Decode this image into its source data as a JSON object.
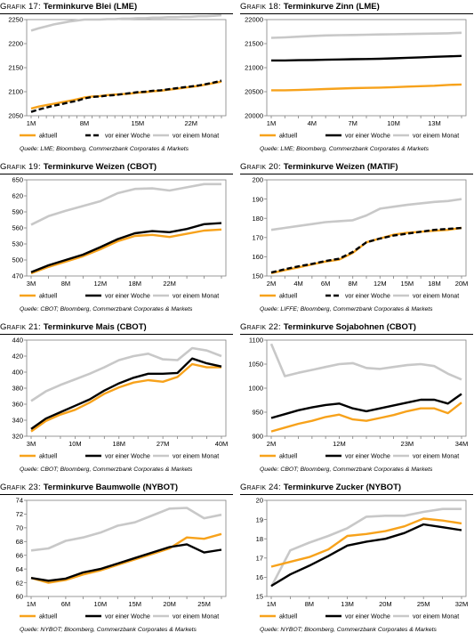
{
  "charts": [
    {
      "prefix": "Grafik 17:",
      "name": "Terminkurve Blei (LME)",
      "source": "Quelle: LME; Bloomberg, Commerzbank Corporates & Markets",
      "chart_data": {
        "type": "line",
        "x": [
          "1M",
          "",
          "",
          "",
          "",
          "",
          "",
          "8M",
          "",
          "",
          "",
          "",
          "",
          "",
          "15M",
          "",
          "",
          "",
          "",
          "",
          "",
          "22M",
          "",
          "",
          "",
          ""
        ],
        "y_ticks": [
          2050,
          2100,
          2150,
          2200,
          2250
        ],
        "ylim": [
          2050,
          2250
        ],
        "legend": [
          "aktuell",
          "vor einer Woche",
          "vor einem Monat"
        ],
        "series": [
          {
            "name": "aktuell",
            "color": "#f7a21b",
            "dash": "",
            "values": [
              2065,
              2069,
              2072,
              2075,
              2078,
              2081,
              2084,
              2088,
              2090,
              2091,
              2093,
              2094,
              2095,
              2096,
              2098,
              2099,
              2101,
              2102,
              2104,
              2106,
              2108,
              2110,
              2112,
              2115,
              2118,
              2121
            ]
          },
          {
            "name": "vor einer Woche",
            "color": "#000000",
            "dash": "6,3",
            "values": [
              2058,
              2063,
              2067,
              2071,
              2074,
              2078,
              2081,
              2086,
              2089,
              2090,
              2092,
              2093,
              2095,
              2097,
              2099,
              2100,
              2102,
              2103,
              2105,
              2107,
              2109,
              2111,
              2113,
              2116,
              2119,
              2123
            ]
          },
          {
            "name": "vor einem Monat",
            "color": "#c8c8c8",
            "dash": "",
            "values": [
              2227,
              2232,
              2236,
              2240,
              2243,
              2246,
              2248,
              2250,
              2250,
              2250,
              2251,
              2251,
              2252,
              2252,
              2253,
              2253,
              2254,
              2254,
              2255,
              2255,
              2256,
              2256,
              2257,
              2257,
              2258,
              2259
            ]
          }
        ]
      }
    },
    {
      "prefix": "Grafik 18:",
      "name": "Terminkurve Zinn (LME)",
      "source": "Quelle: LME; Bloomberg, Commerzbank Corporates & Markets",
      "chart_data": {
        "type": "line",
        "x": [
          "1M",
          "",
          "",
          "4M",
          "",
          "",
          "7M",
          "",
          "",
          "10M",
          "",
          "",
          "13M",
          "",
          ""
        ],
        "y_ticks": [
          20000,
          20500,
          21000,
          21500,
          22000
        ],
        "ylim": [
          20000,
          22000
        ],
        "legend": [
          "aktuell",
          "vor einer Woche",
          "vor einem Monat"
        ],
        "series": [
          {
            "name": "aktuell",
            "color": "#f7a21b",
            "dash": "",
            "values": [
              20530,
              20530,
              20535,
              20545,
              20555,
              20565,
              20575,
              20580,
              20585,
              20595,
              20605,
              20615,
              20625,
              20640,
              20650
            ]
          },
          {
            "name": "vor einer Woche",
            "color": "#000000",
            "dash": "",
            "values": [
              21150,
              21150,
              21155,
              21160,
              21165,
              21170,
              21175,
              21180,
              21185,
              21195,
              21205,
              21215,
              21225,
              21235,
              21245
            ]
          },
          {
            "name": "vor einem Monat",
            "color": "#c8c8c8",
            "dash": "",
            "values": [
              21620,
              21630,
              21645,
              21660,
              21670,
              21675,
              21680,
              21685,
              21690,
              21695,
              21700,
              21705,
              21710,
              21715,
              21725
            ]
          }
        ]
      }
    },
    {
      "prefix": "Grafik 19:",
      "name": "Terminkurve Weizen (CBOT)",
      "source": "Quelle: CBOT; Bloomberg, Commerzbank Corporates & Markets",
      "chart_data": {
        "type": "line",
        "x": [
          "3M",
          "",
          "8M",
          "",
          "12M",
          "",
          "18M",
          "",
          "22M",
          "",
          "",
          ""
        ],
        "y_ticks": [
          470,
          500,
          530,
          560,
          590,
          620,
          650
        ],
        "ylim": [
          470,
          650
        ],
        "legend": [
          "aktuell",
          "vor einer Woche",
          "vor einem Monat"
        ],
        "series": [
          {
            "name": "aktuell",
            "color": "#f7a21b",
            "dash": "",
            "values": [
              475,
              487,
              497,
              507,
              520,
              535,
              545,
              547,
              543,
              549,
              555,
              557
            ]
          },
          {
            "name": "vor einer Woche",
            "color": "#000000",
            "dash": "",
            "values": [
              477,
              490,
              500,
              510,
              524,
              539,
              550,
              554,
              552,
              558,
              567,
              569
            ]
          },
          {
            "name": "vor einem Monat",
            "color": "#c8c8c8",
            "dash": "",
            "values": [
              566,
              582,
              592,
              601,
              610,
              625,
              633,
              634,
              630,
              636,
              642,
              642
            ]
          }
        ]
      }
    },
    {
      "prefix": "Grafik 20:",
      "name": "Terminkurve Weizen (MATIF)",
      "source": "Quelle: LIFFE; Bloomberg, Commerzbank Corporates & Markets",
      "chart_data": {
        "type": "line",
        "x": [
          "2M",
          "",
          "4M",
          "",
          "6M",
          "",
          "8M",
          "",
          "12M",
          "",
          "15M",
          "",
          "18M",
          "",
          "20M"
        ],
        "y_ticks": [
          150,
          160,
          170,
          180,
          190,
          200
        ],
        "ylim": [
          150,
          200
        ],
        "legend": [
          "aktuell",
          "vor einer Woche",
          "vor einem Monat"
        ],
        "series": [
          {
            "name": "aktuell",
            "color": "#f7a21b",
            "dash": "",
            "values": [
              151.5,
              153,
              154.5,
              156,
              157.5,
              158.5,
              162,
              167.5,
              169.5,
              171.5,
              172.5,
              173,
              173.5,
              174,
              175
            ]
          },
          {
            "name": "vor einer Woche",
            "color": "#000000",
            "dash": "6,3",
            "values": [
              151.8,
              153.5,
              155,
              156.3,
              157.8,
              159,
              162.5,
              167.5,
              169.5,
              171,
              172,
              173,
              174,
              174.5,
              175
            ]
          },
          {
            "name": "vor einem Monat",
            "color": "#c8c8c8",
            "dash": "",
            "values": [
              174,
              175,
              176,
              177,
              178,
              178.5,
              179,
              181.5,
              185,
              186,
              187,
              187.8,
              188.5,
              189,
              190
            ]
          }
        ]
      }
    },
    {
      "prefix": "Grafik 21:",
      "name": "Terminkurve Mais (CBOT)",
      "source": "Quelle: CBOT; Bloomberg, Commerzbank Corporates & Markets",
      "chart_data": {
        "type": "line",
        "x": [
          "3M",
          "",
          "",
          "10M",
          "",
          "",
          "18M",
          "",
          "",
          "27M",
          "",
          "",
          "",
          "40M"
        ],
        "y_ticks": [
          320,
          340,
          360,
          380,
          400,
          420,
          440
        ],
        "ylim": [
          320,
          440
        ],
        "legend": [
          "aktuell",
          "vor einer Woche",
          "vor einem Monat"
        ],
        "series": [
          {
            "name": "aktuell",
            "color": "#f7a21b",
            "dash": "",
            "values": [
              326,
              339,
              347,
              353,
              362,
              373,
              381,
              387,
              390,
              388,
              394,
              410,
              406,
              406
            ]
          },
          {
            "name": "vor einer Woche",
            "color": "#000000",
            "dash": "",
            "values": [
              329,
              342,
              350,
              358,
              366,
              377,
              386,
              393,
              398,
              398,
              399,
              417,
              411,
              407
            ]
          },
          {
            "name": "vor einem Monat",
            "color": "#c8c8c8",
            "dash": "",
            "values": [
              364,
              376,
              384,
              391,
              398,
              406,
              415,
              420,
              423,
              416,
              415,
              430,
              427,
              420
            ]
          }
        ]
      }
    },
    {
      "prefix": "Grafik 22:",
      "name": "Terminkurve Sojabohnen (CBOT)",
      "source": "Quelle: CBOT; Bloomberg, Commerzbank Corporates & Markets",
      "chart_data": {
        "type": "line",
        "x": [
          "2M",
          "",
          "",
          "",
          "",
          "12M",
          "",
          "",
          "",
          "",
          "23M",
          "",
          "",
          "",
          "34M"
        ],
        "y_ticks": [
          900,
          950,
          1000,
          1050,
          1100
        ],
        "ylim": [
          900,
          1100
        ],
        "legend": [
          "aktuell",
          "vor einer Woche",
          "vor einem Monat"
        ],
        "series": [
          {
            "name": "aktuell",
            "color": "#f7a21b",
            "dash": "",
            "values": [
              910,
              918,
              926,
              932,
              940,
              945,
              935,
              932,
              938,
              944,
              952,
              958,
              958,
              948,
              970
            ]
          },
          {
            "name": "vor einer Woche",
            "color": "#000000",
            "dash": "",
            "values": [
              938,
              946,
              954,
              960,
              965,
              968,
              958,
              952,
              958,
              964,
              970,
              976,
              976,
              968,
              988
            ]
          },
          {
            "name": "vor einem Monat",
            "color": "#c8c8c8",
            "dash": "",
            "values": [
              1092,
              1025,
              1032,
              1038,
              1044,
              1050,
              1052,
              1042,
              1040,
              1044,
              1048,
              1050,
              1046,
              1030,
              1018
            ]
          }
        ]
      }
    },
    {
      "prefix": "Grafik 23:",
      "name": "Terminkurve Baumwolle (NYBOT)",
      "source": "Quelle: NYBOT; Bloomberg, Commerzbank Corporates & Markets",
      "chart_data": {
        "type": "line",
        "x": [
          "1M",
          "",
          "6M",
          "",
          "10M",
          "",
          "15M",
          "",
          "20M",
          "",
          "25M",
          ""
        ],
        "y_ticks": [
          60,
          62,
          64,
          66,
          68,
          70,
          72,
          74
        ],
        "ylim": [
          60,
          74
        ],
        "legend": [
          "aktuell",
          "vor einer Woche",
          "vor einem Monat"
        ],
        "series": [
          {
            "name": "aktuell",
            "color": "#f7a21b",
            "dash": "",
            "values": [
              62.7,
              62.0,
              62.4,
              63.2,
              63.8,
              64.6,
              65.4,
              66.2,
              67.0,
              68.6,
              68.4,
              69.1
            ]
          },
          {
            "name": "vor einer Woche",
            "color": "#000000",
            "dash": "",
            "values": [
              62.7,
              62.3,
              62.6,
              63.5,
              64.0,
              64.8,
              65.6,
              66.4,
              67.2,
              67.6,
              66.4,
              66.8
            ]
          },
          {
            "name": "vor einem Monat",
            "color": "#c8c8c8",
            "dash": "",
            "values": [
              66.7,
              67.0,
              68.1,
              68.6,
              69.3,
              70.3,
              70.8,
              71.8,
              72.8,
              72.9,
              71.4,
              71.9
            ]
          }
        ]
      }
    },
    {
      "prefix": "Grafik 24:",
      "name": "Terminkurve Zucker (NYBOT)",
      "source": "Quelle: NYBOT; Bloomberg, Commerzbank Corporates & Markets",
      "chart_data": {
        "type": "line",
        "x": [
          "1M",
          "",
          "8M",
          "",
          "13M",
          "",
          "20M",
          "",
          "25M",
          "",
          "32M"
        ],
        "y_ticks": [
          15,
          16,
          17,
          18,
          19,
          20
        ],
        "ylim": [
          15,
          20
        ],
        "legend": [
          "aktuell",
          "vor einer Woche",
          "vor einem Monat"
        ],
        "series": [
          {
            "name": "aktuell",
            "color": "#f7a21b",
            "dash": "",
            "values": [
              16.55,
              16.8,
              17.05,
              17.45,
              18.15,
              18.25,
              18.4,
              18.65,
              19.05,
              18.95,
              18.8
            ]
          },
          {
            "name": "vor einer Woche",
            "color": "#000000",
            "dash": "",
            "values": [
              15.55,
              16.15,
              16.6,
              17.1,
              17.65,
              17.85,
              18.0,
              18.3,
              18.75,
              18.6,
              18.45
            ]
          },
          {
            "name": "vor einem Monat",
            "color": "#c8c8c8",
            "dash": "",
            "values": [
              15.5,
              17.4,
              17.8,
              18.15,
              18.55,
              19.15,
              19.2,
              19.2,
              19.4,
              19.55,
              19.55
            ]
          }
        ]
      }
    }
  ]
}
